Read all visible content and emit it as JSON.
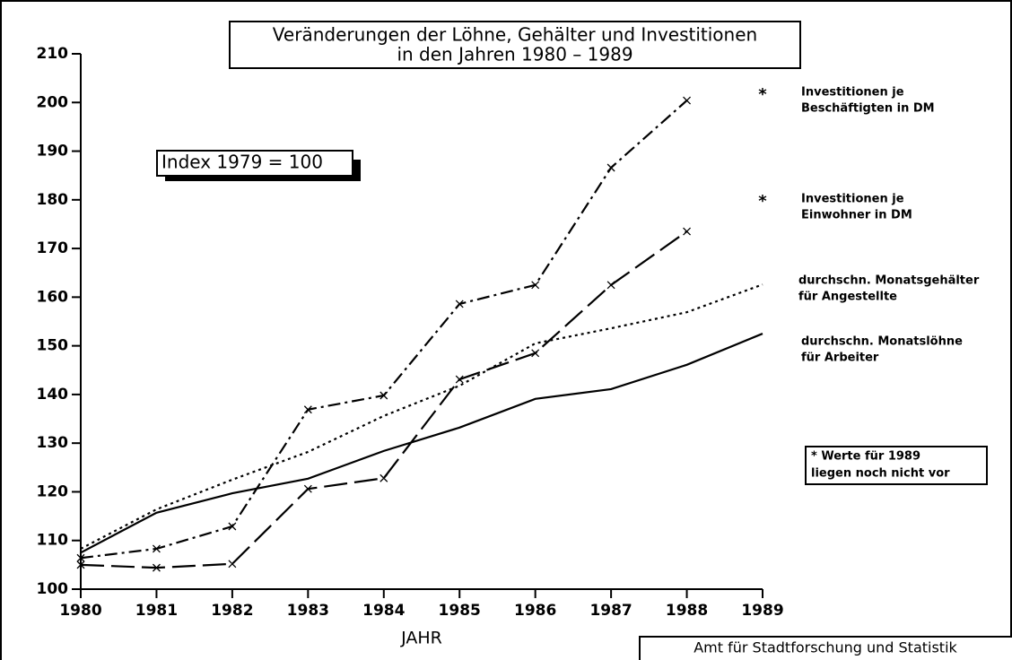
{
  "chart_data": {
    "type": "line",
    "title": [
      "Veränderungen der Löhne, Gehälter und Investitionen",
      "in den Jahren 1980 – 1989"
    ],
    "index_label": "Index 1979 = 100",
    "x_label": "JAHR",
    "note": [
      "* Werte für 1989",
      "liegen noch nicht vor"
    ],
    "footer": "Amt für Stadtforschung und Statistik",
    "x": [
      1980,
      1981,
      1982,
      1983,
      1984,
      1985,
      1986,
      1987,
      1988,
      1989
    ],
    "xlim": [
      1980,
      1989
    ],
    "xticks": [
      1980,
      1981,
      1982,
      1983,
      1984,
      1985,
      1986,
      1987,
      1988,
      1989
    ],
    "ylim": [
      100,
      210
    ],
    "yticks": [
      100,
      110,
      120,
      130,
      140,
      150,
      160,
      170,
      180,
      190,
      200,
      210
    ],
    "series": [
      {
        "name": [
          "Investitionen je",
          "Beschäftigten in DM"
        ],
        "note_mark": "*",
        "color": "#000000",
        "dash": "dash-dot",
        "marker": "x",
        "values": [
          106.4,
          108.3,
          112.9,
          136.9,
          139.8,
          158.6,
          162.5,
          186.6,
          200.4,
          null
        ]
      },
      {
        "name": [
          "Investitionen je",
          "Einwohner in DM"
        ],
        "note_mark": "*",
        "color": "#000000",
        "dash": "long-dash",
        "marker": "x",
        "values": [
          105,
          104.4,
          105.2,
          120.6,
          122.8,
          143.1,
          148.5,
          162.5,
          173.5,
          null
        ]
      },
      {
        "name": [
          "durchschn. Monatsgehälter",
          "für Angestellte"
        ],
        "color": "#000000",
        "dash": "dotted",
        "values": [
          108.3,
          116.4,
          122.5,
          128.2,
          135.6,
          141.8,
          150.5,
          153.6,
          156.9,
          162.6
        ]
      },
      {
        "name": [
          "durchschn. Monatslöhne",
          "für Arbeiter"
        ],
        "color": "#000000",
        "dash": "solid",
        "values": [
          107.5,
          115.7,
          119.7,
          122.7,
          128.4,
          133.2,
          139.1,
          141.1,
          146.1,
          152.5
        ]
      }
    ]
  }
}
